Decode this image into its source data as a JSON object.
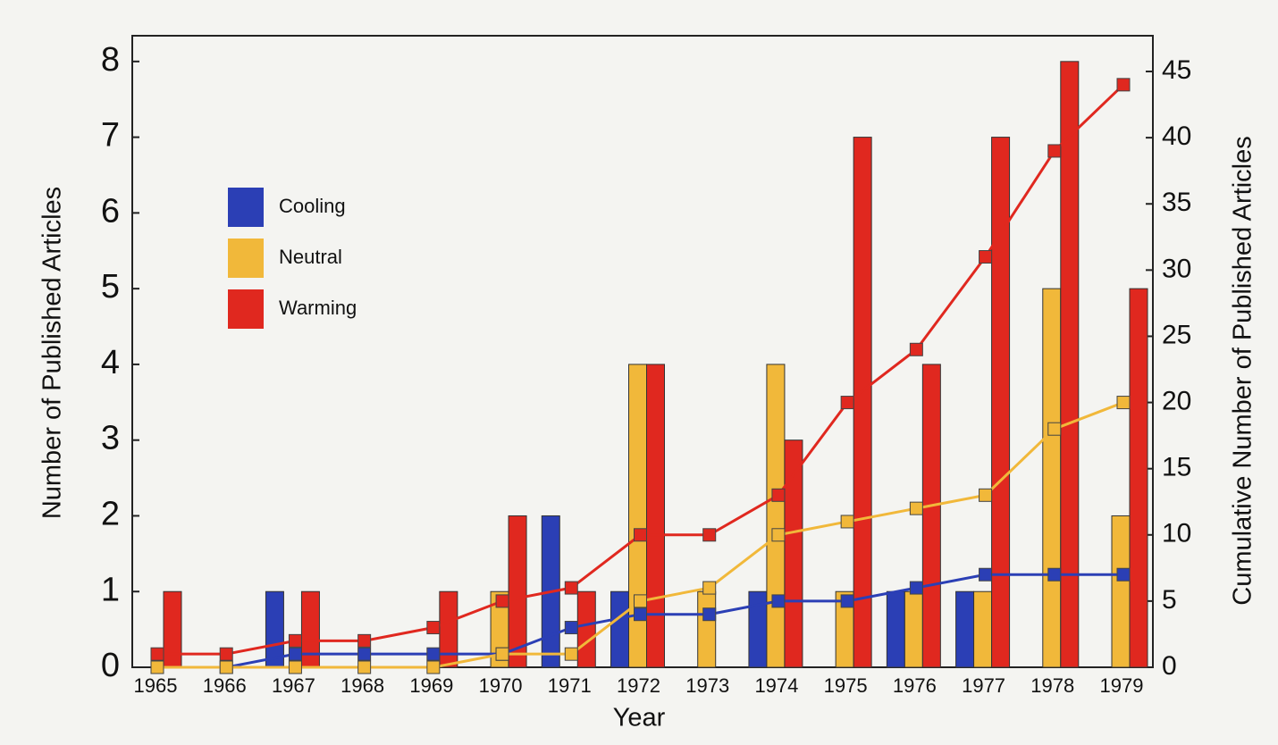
{
  "chart_data": {
    "type": "bar",
    "x_label": "Year",
    "y_label": "Number of Published Articles",
    "y2_label": "Cumulative Number of Published Articles",
    "categories": [
      "1965",
      "1966",
      "1967",
      "1968",
      "1969",
      "1970",
      "1971",
      "1972",
      "1973",
      "1974",
      "1975",
      "1976",
      "1977",
      "1978",
      "1979"
    ],
    "series": [
      {
        "name": "Cooling",
        "color": "#2b3fb5",
        "values": [
          0,
          0,
          1,
          0,
          0,
          0,
          2,
          1,
          0,
          1,
          0,
          1,
          1,
          0,
          0
        ],
        "cumulative": [
          0,
          0,
          1,
          1,
          1,
          1,
          3,
          4,
          4,
          5,
          5,
          6,
          7,
          7,
          7
        ]
      },
      {
        "name": "Neutral",
        "color": "#f1b83a",
        "values": [
          0,
          0,
          0,
          0,
          0,
          1,
          0,
          4,
          1,
          4,
          1,
          1,
          1,
          5,
          2
        ],
        "cumulative": [
          0,
          0,
          0,
          0,
          0,
          1,
          1,
          5,
          6,
          10,
          11,
          12,
          13,
          18,
          20
        ]
      },
      {
        "name": "Warming",
        "color": "#e0281f",
        "values": [
          1,
          0,
          1,
          0,
          1,
          2,
          1,
          4,
          0,
          3,
          7,
          4,
          7,
          8,
          5
        ],
        "cumulative": [
          1,
          1,
          2,
          2,
          3,
          5,
          6,
          10,
          10,
          13,
          20,
          24,
          31,
          39,
          44
        ]
      }
    ],
    "ylim": [
      0,
      8.34
    ],
    "yticks": [
      0,
      1,
      2,
      3,
      4,
      5,
      6,
      7,
      8
    ],
    "y2lim": [
      0,
      47.7
    ],
    "y2ticks": [
      0,
      5,
      10,
      15,
      20,
      25,
      30,
      35,
      40,
      45
    ]
  }
}
